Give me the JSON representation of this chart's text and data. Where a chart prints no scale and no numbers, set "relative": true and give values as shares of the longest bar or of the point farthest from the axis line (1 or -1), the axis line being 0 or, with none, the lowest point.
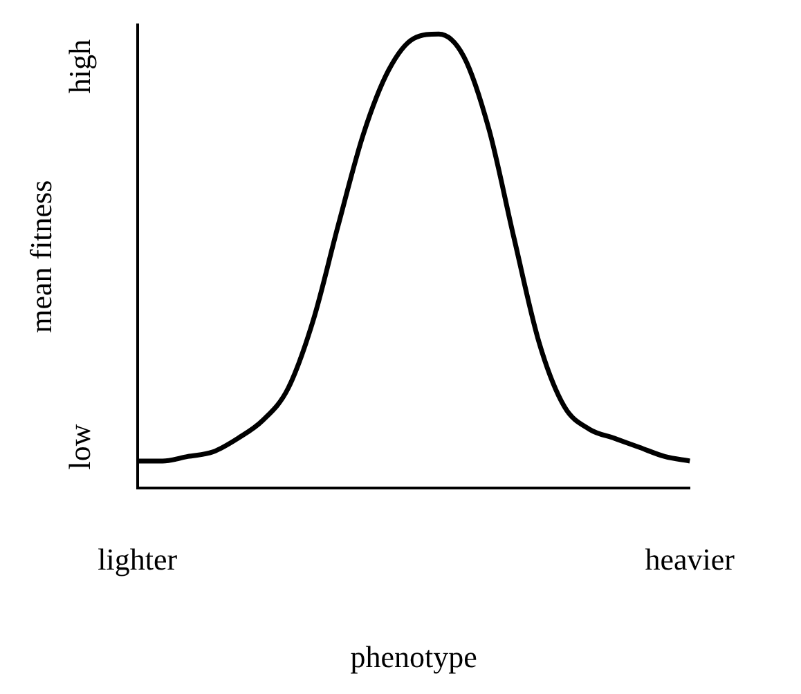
{
  "chart_data": {
    "type": "line",
    "relative": true,
    "xlabel": "phenotype",
    "ylabel": "mean fitness",
    "annotations": [
      "low",
      "high"
    ],
    "categories": [
      "lighter",
      null,
      null,
      null,
      null,
      null,
      null,
      null,
      null,
      null,
      null,
      null,
      null,
      null,
      null,
      null,
      null,
      null,
      null,
      null,
      null,
      null,
      "heavier"
    ],
    "series": [
      {
        "color": "#000000",
        "values": [
          0.06,
          0.06,
          0.07,
          0.08,
          0.11,
          0.15,
          0.22,
          0.37,
          0.58,
          0.78,
          0.92,
          0.99,
          1,
          0.95,
          0.79,
          0.55,
          0.32,
          0.18,
          0.13,
          0.11,
          0.09,
          0.07,
          0.06
        ]
      }
    ]
  }
}
